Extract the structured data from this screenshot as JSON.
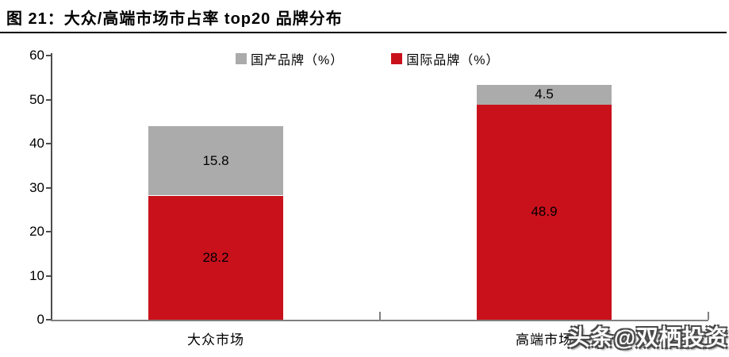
{
  "title": "图 21：大众/高端市场市占率 top20 品牌分布",
  "watermark": "头条@双栖投资",
  "chart_data": {
    "type": "bar",
    "stacked": true,
    "title": "图 21：大众/高端市场市占率 top20 品牌分布",
    "categories": [
      "大众市场",
      "高端市场"
    ],
    "series": [
      {
        "key": "international-brands",
        "name": "国际品牌（%）",
        "color": "#C9111C",
        "values": [
          28.2,
          48.9
        ]
      },
      {
        "key": "domestic-brands",
        "name": "国产品牌（%）",
        "color": "#ABABAB",
        "values": [
          15.8,
          4.5
        ]
      }
    ],
    "totals": [
      44.0,
      53.4
    ],
    "ylim": [
      0,
      60
    ],
    "yticks": [
      0,
      10,
      20,
      30,
      40,
      50,
      60
    ],
    "grid": false,
    "legend_position": "top",
    "value_labels": true,
    "colors": {
      "axis_y": "#4d4d4d",
      "axis_x": "#7f7f7f",
      "text": "#000000"
    }
  }
}
